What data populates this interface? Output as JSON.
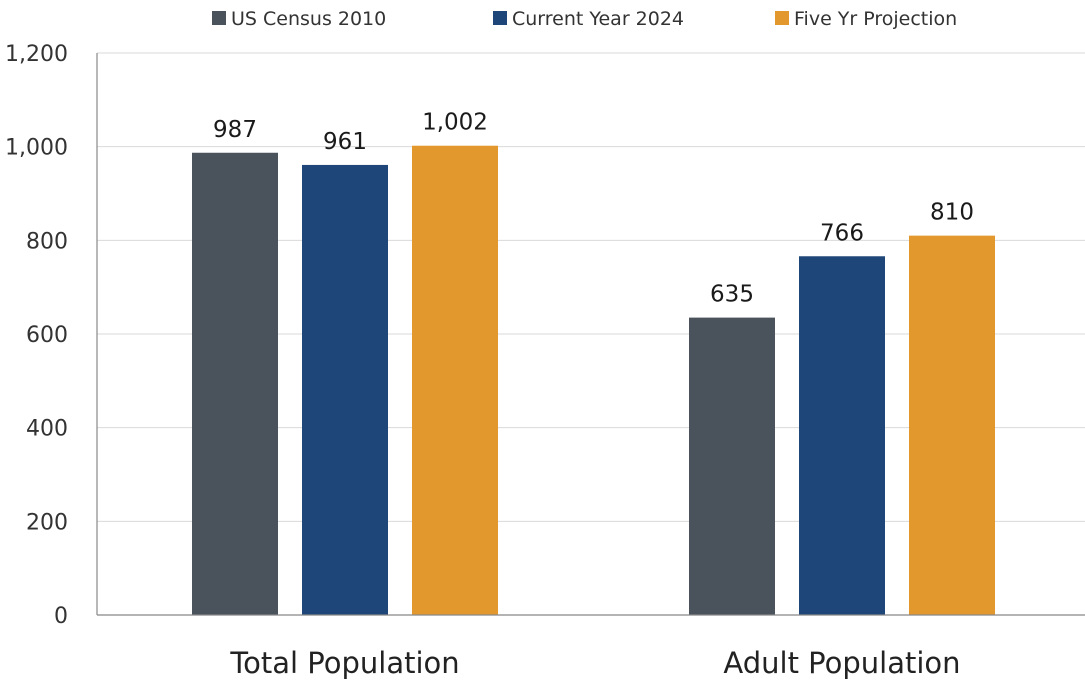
{
  "chart_data": {
    "type": "bar",
    "categories": [
      "Total Population",
      "Adult Population"
    ],
    "series": [
      {
        "name": "US Census 2010",
        "color": "#4a535c",
        "values": [
          987,
          635
        ],
        "labels": [
          "987",
          "635"
        ]
      },
      {
        "name": "Current Year 2024",
        "color": "#1f4678",
        "values": [
          961,
          766
        ],
        "labels": [
          "961",
          "766"
        ]
      },
      {
        "name": "Five Yr Projection",
        "color": "#e3982e",
        "values": [
          1002,
          810
        ],
        "labels": [
          "1,002",
          "810"
        ]
      }
    ],
    "ylim": [
      0,
      1200
    ],
    "y_ticks": [
      0,
      200,
      400,
      600,
      800,
      1000,
      1200
    ],
    "y_tick_labels": [
      "0",
      "200",
      "400",
      "600",
      "800",
      "1,000",
      "1,200"
    ],
    "title": "",
    "xlabel": "",
    "ylabel": "",
    "grid": true,
    "legend_position": "top-center"
  }
}
